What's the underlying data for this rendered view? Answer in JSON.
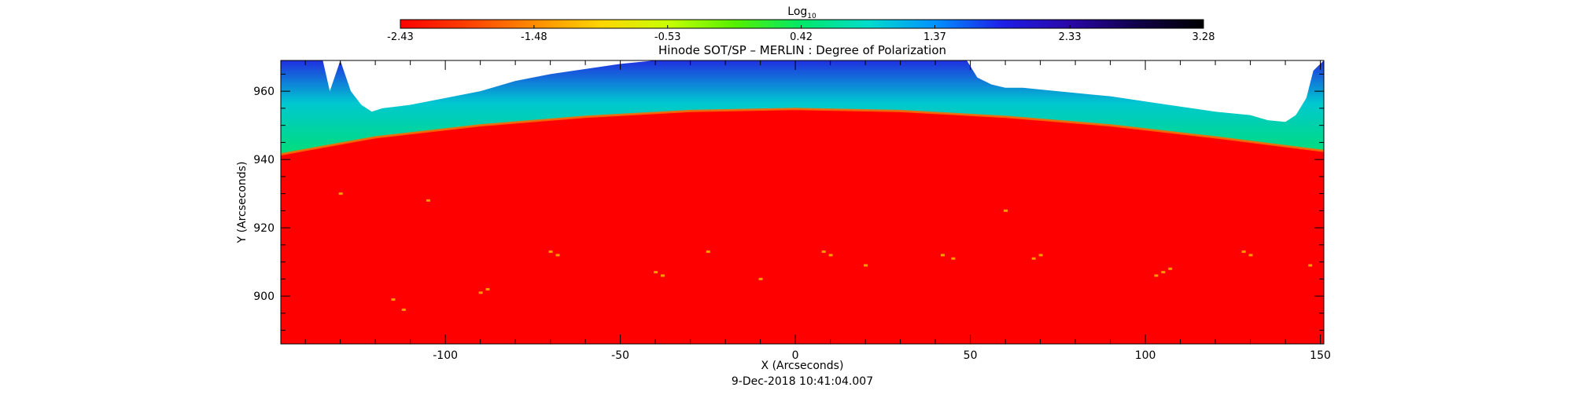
{
  "chart_data": {
    "type": "heatmap",
    "title": "Hinode SOT/SP – MERLIN : Degree of Polarization",
    "xlabel": "X (Arcseconds)",
    "ylabel": "Y (Arcseconds)",
    "date_label": "9-Dec-2018 10:41:04.007",
    "xlim": [
      -147,
      151
    ],
    "ylim": [
      886,
      969
    ],
    "x_ticks": [
      -100,
      -50,
      0,
      50,
      100,
      150
    ],
    "x_tick_labels": [
      "-100",
      "-50",
      "0",
      "50",
      "100",
      "150"
    ],
    "y_ticks": [
      900,
      920,
      940,
      960
    ],
    "y_tick_labels": [
      "900",
      "920",
      "940",
      "960"
    ],
    "colorbar": {
      "label": "Log",
      "label_sub": "10",
      "range": [
        -2.43,
        3.28
      ],
      "ticks": [
        -2.43,
        -1.48,
        -0.53,
        0.42,
        1.37,
        2.33,
        3.28
      ],
      "tick_labels": [
        "-2.43",
        "-1.48",
        "-0.53",
        "0.42",
        "1.37",
        "2.33",
        "3.28"
      ],
      "colors": [
        "#ff0000",
        "#ff4000",
        "#ff8c00",
        "#ffd500",
        "#c8ff00",
        "#55f000",
        "#00e86a",
        "#00dccc",
        "#0090ff",
        "#1e1ee6",
        "#2a08a8",
        "#10004a",
        "#000000"
      ]
    },
    "limb": {
      "x": [
        -147,
        -120,
        -90,
        -60,
        -30,
        0,
        30,
        60,
        90,
        120,
        151
      ],
      "y": [
        941.5,
        946.5,
        950,
        952.5,
        954.2,
        954.8,
        954.2,
        952.5,
        950,
        946.5,
        942.5
      ]
    },
    "no_data_boundary": {
      "x": [
        -147,
        -140,
        -135,
        -133,
        -130,
        -127,
        -124,
        -121,
        -118,
        -110,
        -100,
        -90,
        -80,
        -70,
        -60,
        -50,
        -40,
        -35,
        -30,
        -25,
        -20,
        -15,
        -10,
        -5,
        0,
        5,
        10,
        15,
        20,
        25,
        30,
        35,
        40,
        45,
        49,
        52,
        56,
        60,
        65,
        70,
        80,
        90,
        100,
        110,
        120,
        130,
        135,
        140,
        143,
        146,
        148,
        151
      ],
      "y": [
        969,
        969,
        969,
        960,
        969,
        960,
        956,
        954,
        955,
        956,
        958,
        960,
        963,
        965,
        966.5,
        968,
        969,
        969,
        969,
        969,
        969,
        969,
        969,
        969,
        969,
        969,
        969,
        969,
        969,
        969,
        969,
        969,
        969,
        969,
        969,
        964,
        962,
        961,
        961,
        960.5,
        959.5,
        958.5,
        957,
        955.5,
        954,
        953,
        951.5,
        951,
        953,
        958,
        966,
        969
      ]
    },
    "active_patches": [
      {
        "x": -115,
        "y": 899
      },
      {
        "x": -112,
        "y": 896
      },
      {
        "x": -90,
        "y": 901
      },
      {
        "x": -88,
        "y": 902
      },
      {
        "x": -70,
        "y": 913
      },
      {
        "x": -68,
        "y": 912
      },
      {
        "x": -40,
        "y": 907
      },
      {
        "x": -38,
        "y": 906
      },
      {
        "x": -25,
        "y": 913
      },
      {
        "x": -10,
        "y": 905
      },
      {
        "x": 8,
        "y": 913
      },
      {
        "x": 10,
        "y": 912
      },
      {
        "x": 20,
        "y": 909
      },
      {
        "x": 42,
        "y": 912
      },
      {
        "x": 45,
        "y": 911
      },
      {
        "x": 68,
        "y": 911
      },
      {
        "x": 70,
        "y": 912
      },
      {
        "x": 105,
        "y": 907
      },
      {
        "x": 107,
        "y": 908
      },
      {
        "x": 103,
        "y": 906
      },
      {
        "x": 128,
        "y": 913
      },
      {
        "x": 130,
        "y": 912
      },
      {
        "x": 147,
        "y": 909
      },
      {
        "x": -130,
        "y": 930
      },
      {
        "x": 60,
        "y": 925
      },
      {
        "x": -105,
        "y": 928
      }
    ]
  }
}
